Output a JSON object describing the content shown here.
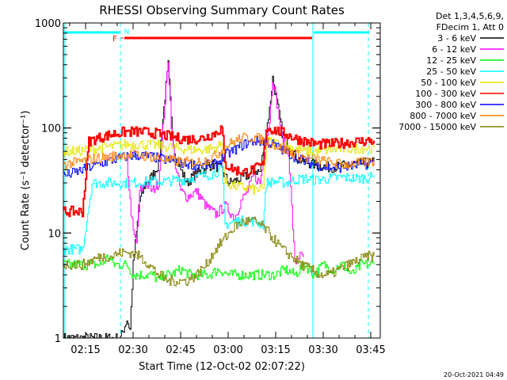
{
  "chart_data": {
    "type": "line",
    "title": "RHESSI Observing Summary Count Rates",
    "xlabel": "Start Time (12-Oct-02 02:07:22)",
    "ylabel": "Count Rate (s⁻¹ detector⁻¹)",
    "yscale": "log",
    "ylim": [
      1,
      1000
    ],
    "xlim_minutes": [
      128,
      228
    ],
    "x_ticks": [
      {
        "label": "02:15",
        "minutes": 135
      },
      {
        "label": "02:30",
        "minutes": 150
      },
      {
        "label": "02:45",
        "minutes": 165
      },
      {
        "label": "03:00",
        "minutes": 180
      },
      {
        "label": "03:15",
        "minutes": 195
      },
      {
        "label": "03:30",
        "minutes": 210
      },
      {
        "label": "03:45",
        "minutes": 225
      }
    ],
    "y_ticks": [
      {
        "label": "1",
        "value": 1
      },
      {
        "label": "10",
        "value": 10
      },
      {
        "label": "100",
        "value": 100
      },
      {
        "label": "1000",
        "value": 1000
      }
    ],
    "legend": {
      "header": [
        "Det 1,3,4,5,6,9,",
        "FDecim 1, Att 0"
      ],
      "placement": "right"
    },
    "flags": {
      "F_label": "F",
      "N_label": "N"
    },
    "timestamp": "20-Oct-2021 04:49",
    "series": [
      {
        "name": "3 - 6 keV",
        "color": "#000000",
        "points": [
          [
            128,
            1
          ],
          [
            134,
            1
          ],
          [
            140,
            1
          ],
          [
            143,
            1
          ],
          [
            146,
            1
          ],
          [
            148,
            1.5
          ],
          [
            149,
            1.2
          ],
          [
            150,
            5
          ],
          [
            152,
            20
          ],
          [
            154,
            30
          ],
          [
            156,
            35
          ],
          [
            158,
            45
          ],
          [
            160,
            200
          ],
          [
            161,
            400
          ],
          [
            162,
            120
          ],
          [
            163,
            60
          ],
          [
            165,
            40
          ],
          [
            167,
            30
          ],
          [
            169,
            35
          ],
          [
            172,
            40
          ],
          [
            175,
            45
          ],
          [
            178,
            40
          ],
          [
            180,
            30
          ],
          [
            183,
            32
          ],
          [
            186,
            35
          ],
          [
            188,
            40
          ],
          [
            190,
            38
          ],
          [
            193,
            150
          ],
          [
            194,
            300
          ],
          [
            195,
            200
          ],
          [
            197,
            90
          ],
          [
            199,
            70
          ],
          [
            202,
            50
          ],
          [
            207,
            45
          ],
          [
            212,
            42
          ],
          [
            217,
            44
          ],
          [
            222,
            46
          ],
          [
            226,
            47
          ]
        ]
      },
      {
        "name": "6 - 12 keV",
        "color": "#ff00ff",
        "points": [
          [
            148,
            50
          ],
          [
            149,
            20
          ],
          [
            150,
            10
          ],
          [
            151,
            8
          ],
          [
            152,
            25
          ],
          [
            154,
            30
          ],
          [
            156,
            25
          ],
          [
            158,
            30
          ],
          [
            160,
            180
          ],
          [
            161,
            450
          ],
          [
            162,
            110
          ],
          [
            163,
            50
          ],
          [
            165,
            25
          ],
          [
            167,
            22
          ],
          [
            170,
            25
          ],
          [
            173,
            18
          ],
          [
            176,
            15
          ],
          [
            179,
            18
          ],
          [
            182,
            14
          ],
          [
            184,
            20
          ],
          [
            186,
            25
          ],
          [
            188,
            35
          ],
          [
            190,
            30
          ],
          [
            193,
            120
          ],
          [
            194,
            300
          ],
          [
            195,
            200
          ],
          [
            197,
            80
          ],
          [
            199,
            60
          ],
          [
            201,
            5
          ],
          [
            202,
            6
          ],
          [
            204,
            6
          ]
        ]
      },
      {
        "name": "12 - 25 keV",
        "color": "#00ff00",
        "points": [
          [
            128,
            5
          ],
          [
            132,
            5
          ],
          [
            136,
            5
          ],
          [
            140,
            5
          ],
          [
            142,
            6
          ],
          [
            144,
            5
          ],
          [
            146,
            5
          ],
          [
            148,
            5
          ],
          [
            150,
            4
          ],
          [
            152,
            4
          ],
          [
            154,
            4
          ],
          [
            156,
            4
          ],
          [
            158,
            3.5
          ],
          [
            160,
            4
          ],
          [
            162,
            4
          ],
          [
            165,
            4.5
          ],
          [
            168,
            4
          ],
          [
            171,
            4
          ],
          [
            174,
            4
          ],
          [
            177,
            4.5
          ],
          [
            180,
            4
          ],
          [
            183,
            4
          ],
          [
            186,
            4
          ],
          [
            189,
            4
          ],
          [
            192,
            4
          ],
          [
            195,
            4
          ],
          [
            198,
            4.5
          ],
          [
            201,
            4
          ],
          [
            204,
            5
          ],
          [
            207,
            4
          ],
          [
            210,
            5
          ],
          [
            213,
            4.5
          ],
          [
            216,
            5
          ],
          [
            219,
            4
          ],
          [
            222,
            5
          ],
          [
            226,
            5
          ]
        ]
      },
      {
        "name": "25 - 50 keV",
        "color": "#00ffff",
        "points": [
          [
            128,
            7
          ],
          [
            131,
            7
          ],
          [
            134,
            7
          ],
          [
            137,
            30
          ],
          [
            140,
            30
          ],
          [
            145,
            30
          ],
          [
            150,
            30
          ],
          [
            155,
            31
          ],
          [
            160,
            31
          ],
          [
            165,
            32
          ],
          [
            170,
            34
          ],
          [
            174,
            36
          ],
          [
            178,
            40
          ],
          [
            179,
            12
          ],
          [
            182,
            13
          ],
          [
            185,
            13
          ],
          [
            188,
            13
          ],
          [
            191,
            12
          ],
          [
            192,
            30
          ],
          [
            195,
            31
          ],
          [
            198,
            30
          ],
          [
            201,
            32
          ],
          [
            204,
            33
          ],
          [
            208,
            32
          ],
          [
            212,
            33
          ],
          [
            216,
            34
          ],
          [
            220,
            33
          ],
          [
            226,
            34
          ]
        ]
      },
      {
        "name": "50 - 100 keV",
        "color": "#e6e600",
        "points": [
          [
            128,
            60
          ],
          [
            132,
            60
          ],
          [
            136,
            62
          ],
          [
            140,
            65
          ],
          [
            144,
            67
          ],
          [
            148,
            70
          ],
          [
            152,
            70
          ],
          [
            156,
            69
          ],
          [
            160,
            67
          ],
          [
            164,
            64
          ],
          [
            168,
            62
          ],
          [
            172,
            62
          ],
          [
            176,
            65
          ],
          [
            178,
            70
          ],
          [
            179,
            30
          ],
          [
            182,
            28
          ],
          [
            185,
            27
          ],
          [
            188,
            26
          ],
          [
            191,
            26
          ],
          [
            192,
            75
          ],
          [
            195,
            72
          ],
          [
            198,
            68
          ],
          [
            201,
            64
          ],
          [
            204,
            60
          ],
          [
            208,
            60
          ],
          [
            212,
            62
          ],
          [
            216,
            63
          ],
          [
            220,
            64
          ],
          [
            226,
            65
          ]
        ]
      },
      {
        "name": "100 - 300 keV",
        "color": "#ff0000",
        "points": [
          [
            128,
            16
          ],
          [
            134,
            16
          ],
          [
            136,
            75
          ],
          [
            140,
            82
          ],
          [
            144,
            88
          ],
          [
            148,
            92
          ],
          [
            152,
            92
          ],
          [
            156,
            90
          ],
          [
            160,
            85
          ],
          [
            164,
            80
          ],
          [
            168,
            78
          ],
          [
            172,
            80
          ],
          [
            176,
            90
          ],
          [
            178,
            100
          ],
          [
            179,
            45
          ],
          [
            182,
            40
          ],
          [
            185,
            38
          ],
          [
            188,
            40
          ],
          [
            191,
            45
          ],
          [
            192,
            100
          ],
          [
            195,
            95
          ],
          [
            198,
            88
          ],
          [
            201,
            80
          ],
          [
            204,
            75
          ],
          [
            208,
            70
          ],
          [
            212,
            70
          ],
          [
            216,
            72
          ],
          [
            220,
            74
          ],
          [
            226,
            76
          ]
        ]
      },
      {
        "name": "300 - 800 keV",
        "color": "#0000ff",
        "points": [
          [
            128,
            35
          ],
          [
            132,
            38
          ],
          [
            136,
            42
          ],
          [
            140,
            46
          ],
          [
            144,
            50
          ],
          [
            148,
            54
          ],
          [
            152,
            55
          ],
          [
            156,
            53
          ],
          [
            160,
            50
          ],
          [
            164,
            47
          ],
          [
            168,
            45
          ],
          [
            172,
            44
          ],
          [
            176,
            45
          ],
          [
            179,
            55
          ],
          [
            182,
            62
          ],
          [
            185,
            70
          ],
          [
            188,
            75
          ],
          [
            191,
            75
          ],
          [
            194,
            70
          ],
          [
            197,
            62
          ],
          [
            200,
            55
          ],
          [
            204,
            48
          ],
          [
            208,
            44
          ],
          [
            212,
            42
          ],
          [
            216,
            42
          ],
          [
            220,
            44
          ],
          [
            226,
            46
          ]
        ]
      },
      {
        "name": "800 - 7000 keV",
        "color": "#ff8000",
        "points": [
          [
            128,
            45
          ],
          [
            132,
            47
          ],
          [
            136,
            50
          ],
          [
            140,
            52
          ],
          [
            144,
            54
          ],
          [
            148,
            56
          ],
          [
            152,
            55
          ],
          [
            156,
            53
          ],
          [
            160,
            50
          ],
          [
            164,
            48
          ],
          [
            168,
            47
          ],
          [
            172,
            48
          ],
          [
            176,
            55
          ],
          [
            180,
            70
          ],
          [
            184,
            80
          ],
          [
            188,
            82
          ],
          [
            192,
            75
          ],
          [
            196,
            65
          ],
          [
            200,
            58
          ],
          [
            204,
            52
          ],
          [
            208,
            50
          ],
          [
            212,
            47
          ],
          [
            216,
            45
          ],
          [
            220,
            46
          ],
          [
            226,
            48
          ]
        ]
      },
      {
        "name": "7000 - 15000 keV",
        "color": "#808000",
        "points": [
          [
            128,
            5
          ],
          [
            131,
            5
          ],
          [
            134,
            5
          ],
          [
            137,
            5.5
          ],
          [
            140,
            6
          ],
          [
            143,
            6
          ],
          [
            146,
            6.5
          ],
          [
            149,
            6.5
          ],
          [
            152,
            6
          ],
          [
            155,
            5
          ],
          [
            158,
            4
          ],
          [
            161,
            3.5
          ],
          [
            164,
            3.5
          ],
          [
            167,
            3.5
          ],
          [
            170,
            4
          ],
          [
            173,
            5
          ],
          [
            176,
            7
          ],
          [
            179,
            9
          ],
          [
            182,
            11.5
          ],
          [
            185,
            13
          ],
          [
            188,
            13
          ],
          [
            191,
            11.5
          ],
          [
            194,
            9
          ],
          [
            197,
            7
          ],
          [
            200,
            6
          ],
          [
            203,
            5
          ],
          [
            206,
            4.5
          ],
          [
            209,
            4
          ],
          [
            212,
            4
          ],
          [
            215,
            4.5
          ],
          [
            218,
            5
          ],
          [
            221,
            5.5
          ],
          [
            224,
            6
          ],
          [
            226,
            6
          ]
        ]
      }
    ]
  }
}
